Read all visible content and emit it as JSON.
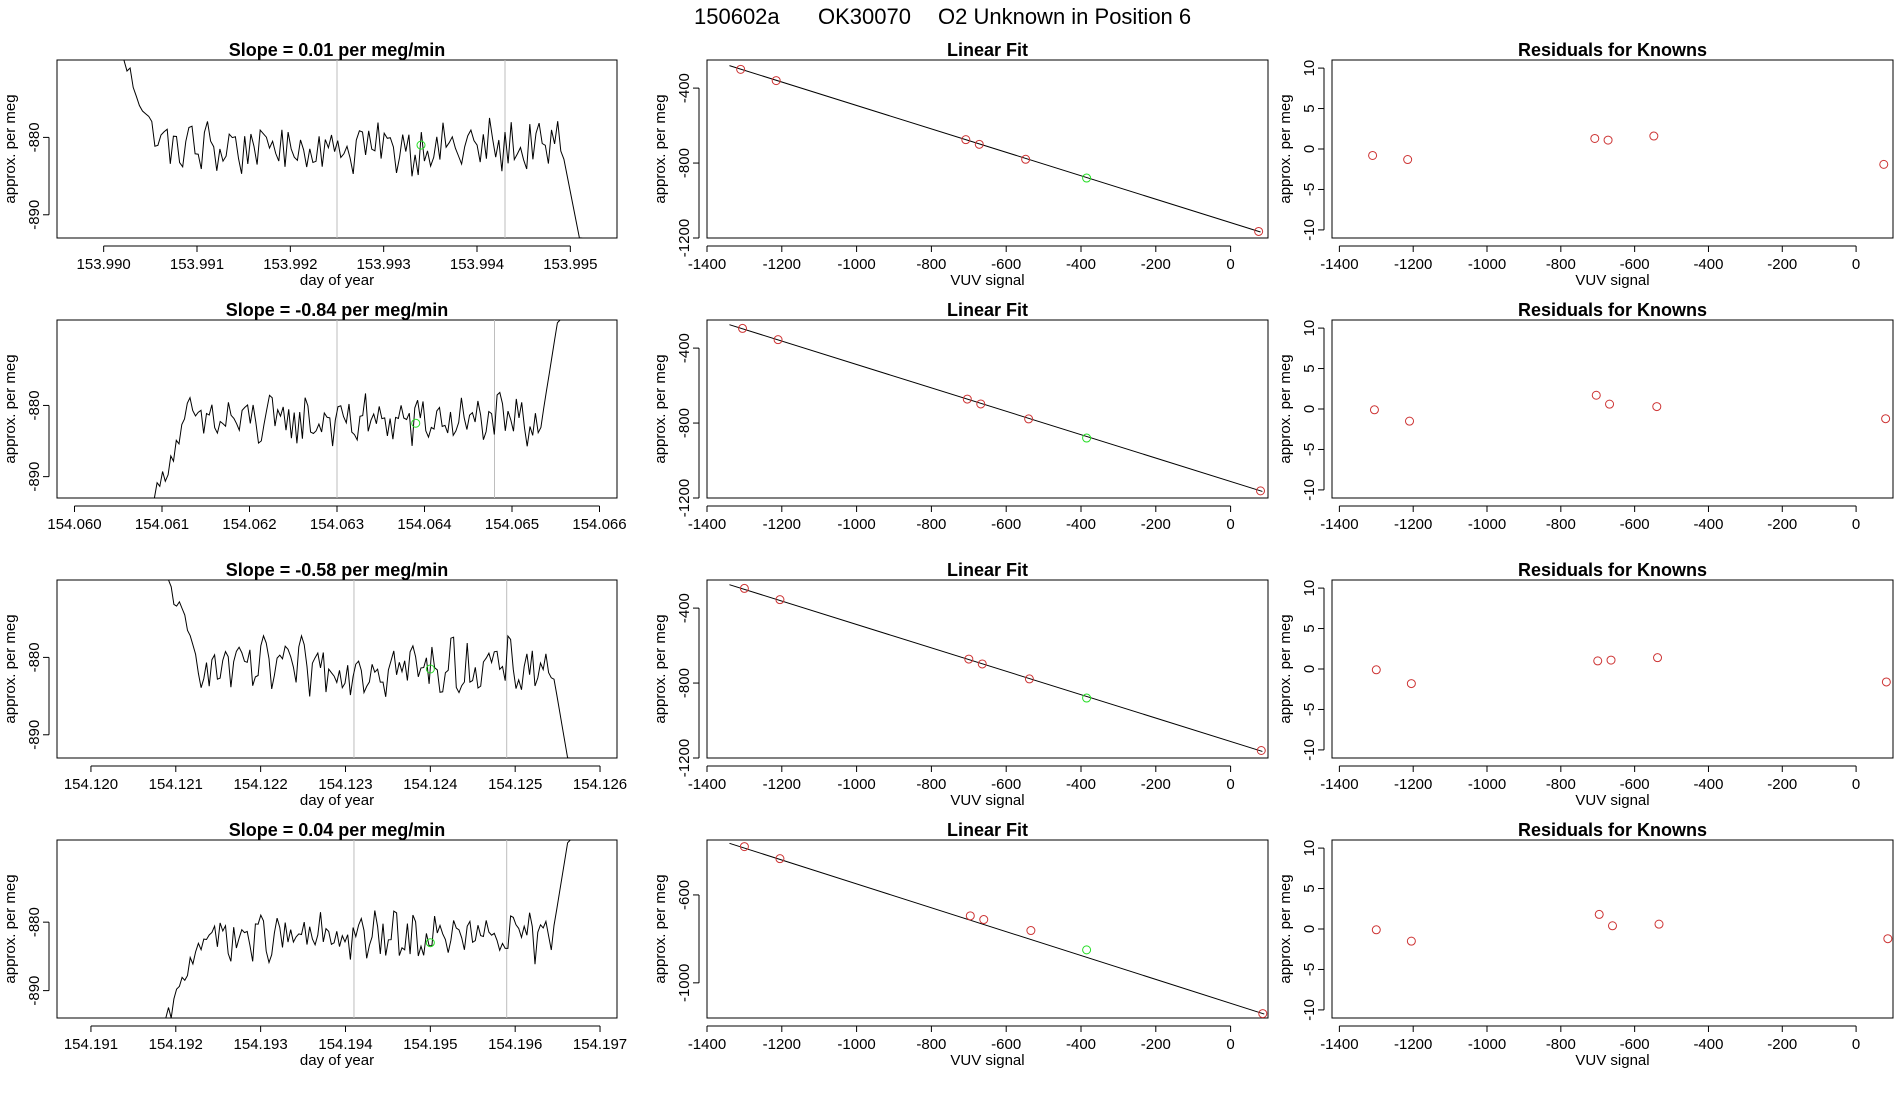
{
  "figure": {
    "title_parts": [
      "150602a",
      "OK30070",
      "O2 Unknown in Position  6"
    ]
  },
  "colors": {
    "known": "#cd3333",
    "unknown": "#22dd22",
    "trace": "#000000",
    "marker_line": "#bebebe"
  },
  "chart_data": [
    {
      "type": "line",
      "panel": "trace",
      "row": 0,
      "title": "Slope =  0.01  per meg/min",
      "xlabel": "day of year",
      "ylabel": "approx. per meg",
      "xlim": [
        153.9895,
        153.9955
      ],
      "ylim": [
        -893,
        -870
      ],
      "xticks": [
        153.99,
        153.991,
        153.992,
        153.993,
        153.994,
        153.995
      ],
      "xtick_labels": [
        "153.990",
        "153.991",
        "153.992",
        "153.993",
        "153.994",
        "153.995"
      ],
      "yticks": [
        -880,
        -890
      ],
      "ytick_labels": [
        "-880",
        "-890"
      ],
      "start": 153.99015,
      "end": 153.99513,
      "mean": -881.3,
      "vlines": [
        153.9925,
        153.9943
      ],
      "unknown_point": [
        153.9934,
        -881.0
      ]
    },
    {
      "type": "scatter",
      "panel": "fit",
      "row": 0,
      "title": "Linear Fit",
      "xlabel": "VUV signal",
      "ylabel": "approx. per meg",
      "xlim": [
        -1400,
        100
      ],
      "ylim": [
        -1200,
        -250
      ],
      "xticks": [
        -1400,
        -1200,
        -1000,
        -800,
        -600,
        -400,
        -200,
        0
      ],
      "xtick_labels": [
        "-1400",
        "-1200",
        "-1000",
        "-800",
        "-600",
        "-400",
        "-200",
        "0"
      ],
      "yticks": [
        -400,
        -800,
        -1200
      ],
      "ytick_labels": [
        "-400",
        "-800",
        "-1200"
      ],
      "known_x": [
        -1310,
        -1215,
        -708,
        -672,
        -548,
        75
      ],
      "known_y": [
        -300,
        -360,
        -675,
        -700,
        -780,
        -1165
      ],
      "unknown_x": [
        -385
      ],
      "unknown_y": [
        -880
      ],
      "fit_line": [
        [
          -1340,
          -280
        ],
        [
          80,
          -1168
        ]
      ]
    },
    {
      "type": "scatter",
      "panel": "residuals",
      "row": 0,
      "title": "Residuals for Knowns",
      "xlabel": "VUV signal",
      "ylabel": "approx. per meg",
      "xlim": [
        -1420,
        100
      ],
      "ylim": [
        -11,
        11
      ],
      "xticks": [
        -1400,
        -1200,
        -1000,
        -800,
        -600,
        -400,
        -200,
        0
      ],
      "xtick_labels": [
        "-1400",
        "-1200",
        "-1000",
        "-800",
        "-600",
        "-400",
        "-200",
        "0"
      ],
      "yticks": [
        10,
        5,
        0,
        -5,
        -10
      ],
      "ytick_labels": [
        "10",
        "5",
        "0",
        "-5",
        "-10"
      ],
      "x": [
        -1310,
        -1215,
        -708,
        -672,
        -548,
        75
      ],
      "y": [
        -0.8,
        -1.3,
        1.3,
        1.1,
        1.6,
        -1.9
      ]
    },
    {
      "type": "line",
      "panel": "trace",
      "row": 1,
      "title": "Slope =  -0.84  per meg/min",
      "xlabel": "",
      "ylabel": "approx. per meg",
      "xlim": [
        154.0598,
        154.0662
      ],
      "ylim": [
        -893,
        -868
      ],
      "xticks": [
        154.06,
        154.061,
        154.062,
        154.063,
        154.064,
        154.065,
        154.066
      ],
      "xtick_labels": [
        "154.060",
        "154.061",
        "154.062",
        "154.063",
        "154.064",
        "154.065",
        "154.066"
      ],
      "yticks": [
        -880,
        -890
      ],
      "ytick_labels": [
        "-880",
        "-890"
      ],
      "start": 154.06085,
      "end": 154.06555,
      "mean": -882.2,
      "vlines": [
        154.063,
        154.0648
      ],
      "unknown_point": [
        154.0639,
        -882.5
      ]
    },
    {
      "type": "scatter",
      "panel": "fit",
      "row": 1,
      "title": "Linear Fit",
      "xlabel": "",
      "ylabel": "approx. per meg",
      "xlim": [
        -1400,
        100
      ],
      "ylim": [
        -1200,
        -250
      ],
      "xticks": [
        -1400,
        -1200,
        -1000,
        -800,
        -600,
        -400,
        -200,
        0
      ],
      "xtick_labels": [
        "-1400",
        "-1200",
        "-1000",
        "-800",
        "-600",
        "-400",
        "-200",
        "0"
      ],
      "yticks": [
        -400,
        -800,
        -1200
      ],
      "ytick_labels": [
        "-400",
        "-800",
        "-1200"
      ],
      "known_x": [
        -1305,
        -1210,
        -704,
        -668,
        -540,
        80
      ],
      "known_y": [
        -295,
        -355,
        -672,
        -698,
        -778,
        -1162
      ],
      "unknown_x": [
        -385
      ],
      "unknown_y": [
        -880
      ],
      "fit_line": [
        [
          -1340,
          -275
        ],
        [
          85,
          -1165
        ]
      ]
    },
    {
      "type": "scatter",
      "panel": "residuals",
      "row": 1,
      "title": "Residuals for Knowns",
      "xlabel": "",
      "ylabel": "approx. per meg",
      "xlim": [
        -1420,
        100
      ],
      "ylim": [
        -11,
        11
      ],
      "xticks": [
        -1400,
        -1200,
        -1000,
        -800,
        -600,
        -400,
        -200,
        0
      ],
      "xtick_labels": [
        "-1400",
        "-1200",
        "-1000",
        "-800",
        "-600",
        "-400",
        "-200",
        "0"
      ],
      "yticks": [
        10,
        5,
        0,
        -5,
        -10
      ],
      "ytick_labels": [
        "10",
        "5",
        "0",
        "-5",
        "-10"
      ],
      "x": [
        -1305,
        -1210,
        -704,
        -668,
        -540,
        80
      ],
      "y": [
        -0.1,
        -1.5,
        1.7,
        0.6,
        0.3,
        -1.2
      ]
    },
    {
      "type": "line",
      "panel": "trace",
      "row": 2,
      "title": "Slope =  -0.58  per meg/min",
      "xlabel": "day of year",
      "ylabel": "approx. per meg",
      "xlim": [
        154.1196,
        154.1262
      ],
      "ylim": [
        -893,
        -870
      ],
      "xticks": [
        154.12,
        154.121,
        154.122,
        154.123,
        154.124,
        154.125,
        154.126
      ],
      "xtick_labels": [
        "154.120",
        "154.121",
        "154.122",
        "154.123",
        "154.124",
        "154.125",
        "154.126"
      ],
      "yticks": [
        -880,
        -890
      ],
      "ytick_labels": [
        "-880",
        "-890"
      ],
      "start": 154.12085,
      "end": 154.12565,
      "mean": -881.3,
      "vlines": [
        154.1231,
        154.1249
      ],
      "unknown_point": [
        154.124,
        -881.5
      ]
    },
    {
      "type": "scatter",
      "panel": "fit",
      "row": 2,
      "title": "Linear Fit",
      "xlabel": "VUV signal",
      "ylabel": "approx. per meg",
      "xlim": [
        -1400,
        100
      ],
      "ylim": [
        -1200,
        -250
      ],
      "xticks": [
        -1400,
        -1200,
        -1000,
        -800,
        -600,
        -400,
        -200,
        0
      ],
      "xtick_labels": [
        "-1400",
        "-1200",
        "-1000",
        "-800",
        "-600",
        "-400",
        "-200",
        "0"
      ],
      "yticks": [
        -400,
        -800,
        -1200
      ],
      "ytick_labels": [
        "-400",
        "-800",
        "-1200"
      ],
      "known_x": [
        -1300,
        -1205,
        -700,
        -664,
        -538,
        82
      ],
      "known_y": [
        -295,
        -355,
        -672,
        -698,
        -778,
        -1160
      ],
      "unknown_x": [
        -385
      ],
      "unknown_y": [
        -880
      ],
      "fit_line": [
        [
          -1340,
          -275
        ],
        [
          85,
          -1165
        ]
      ]
    },
    {
      "type": "scatter",
      "panel": "residuals",
      "row": 2,
      "title": "Residuals for Knowns",
      "xlabel": "VUV signal",
      "ylabel": "approx. per meg",
      "xlim": [
        -1420,
        100
      ],
      "ylim": [
        -11,
        11
      ],
      "xticks": [
        -1400,
        -1200,
        -1000,
        -800,
        -600,
        -400,
        -200,
        0
      ],
      "xtick_labels": [
        "-1400",
        "-1200",
        "-1000",
        "-800",
        "-600",
        "-400",
        "-200",
        "0"
      ],
      "yticks": [
        10,
        5,
        0,
        -5,
        -10
      ],
      "ytick_labels": [
        "10",
        "5",
        "0",
        "-5",
        "-10"
      ],
      "x": [
        -1300,
        -1205,
        -700,
        -664,
        -538,
        82
      ],
      "y": [
        -0.1,
        -1.8,
        1.0,
        1.1,
        1.4,
        -1.6
      ]
    },
    {
      "type": "line",
      "panel": "trace",
      "row": 3,
      "title": "Slope =  0.04  per meg/min",
      "xlabel": "day of year",
      "ylabel": "approx. per meg",
      "xlim": [
        154.1906,
        154.1972
      ],
      "ylim": [
        -894,
        -868
      ],
      "xticks": [
        154.191,
        154.192,
        154.193,
        154.194,
        154.195,
        154.196,
        154.197
      ],
      "xtick_labels": [
        "154.191",
        "154.192",
        "154.193",
        "154.194",
        "154.195",
        "154.196",
        "154.197"
      ],
      "yticks": [
        -880,
        -890
      ],
      "ytick_labels": [
        "-880",
        "-890"
      ],
      "start": 154.19185,
      "end": 154.19665,
      "mean": -882.3,
      "vlines": [
        154.1941,
        154.1959
      ],
      "unknown_point": [
        154.195,
        -883.0
      ]
    },
    {
      "type": "scatter",
      "panel": "fit",
      "row": 3,
      "title": "Linear Fit",
      "xlabel": "VUV signal",
      "ylabel": "approx. per meg",
      "xlim": [
        -1400,
        100
      ],
      "ylim": [
        -1160,
        -350
      ],
      "xticks": [
        -1400,
        -1200,
        -1000,
        -800,
        -600,
        -400,
        -200,
        0
      ],
      "xtick_labels": [
        "-1400",
        "-1200",
        "-1000",
        "-800",
        "-600",
        "-400",
        "-200",
        "0"
      ],
      "yticks": [
        -600,
        -1000
      ],
      "ytick_labels": [
        "-600",
        "-1000"
      ],
      "known_x": [
        -1300,
        -1205,
        -696,
        -660,
        -534,
        86
      ],
      "known_y": [
        -380,
        -435,
        -695,
        -712,
        -762,
        -1140
      ],
      "unknown_x": [
        -385
      ],
      "unknown_y": [
        -850
      ],
      "fit_line": [
        [
          -1340,
          -365
        ],
        [
          90,
          -1142
        ]
      ]
    },
    {
      "type": "scatter",
      "panel": "residuals",
      "row": 3,
      "title": "Residuals for Knowns",
      "xlabel": "VUV signal",
      "ylabel": "approx. per meg",
      "xlim": [
        -1420,
        100
      ],
      "ylim": [
        -11,
        11
      ],
      "xticks": [
        -1400,
        -1200,
        -1000,
        -800,
        -600,
        -400,
        -200,
        0
      ],
      "xtick_labels": [
        "-1400",
        "-1200",
        "-1000",
        "-800",
        "-600",
        "-400",
        "-200",
        "0"
      ],
      "yticks": [
        10,
        5,
        0,
        -5,
        -10
      ],
      "ytick_labels": [
        "10",
        "5",
        "0",
        "-5",
        "-10"
      ],
      "x": [
        -1300,
        -1205,
        -696,
        -660,
        -534,
        86
      ],
      "y": [
        -0.1,
        -1.5,
        1.8,
        0.4,
        0.6,
        -1.2
      ]
    }
  ]
}
